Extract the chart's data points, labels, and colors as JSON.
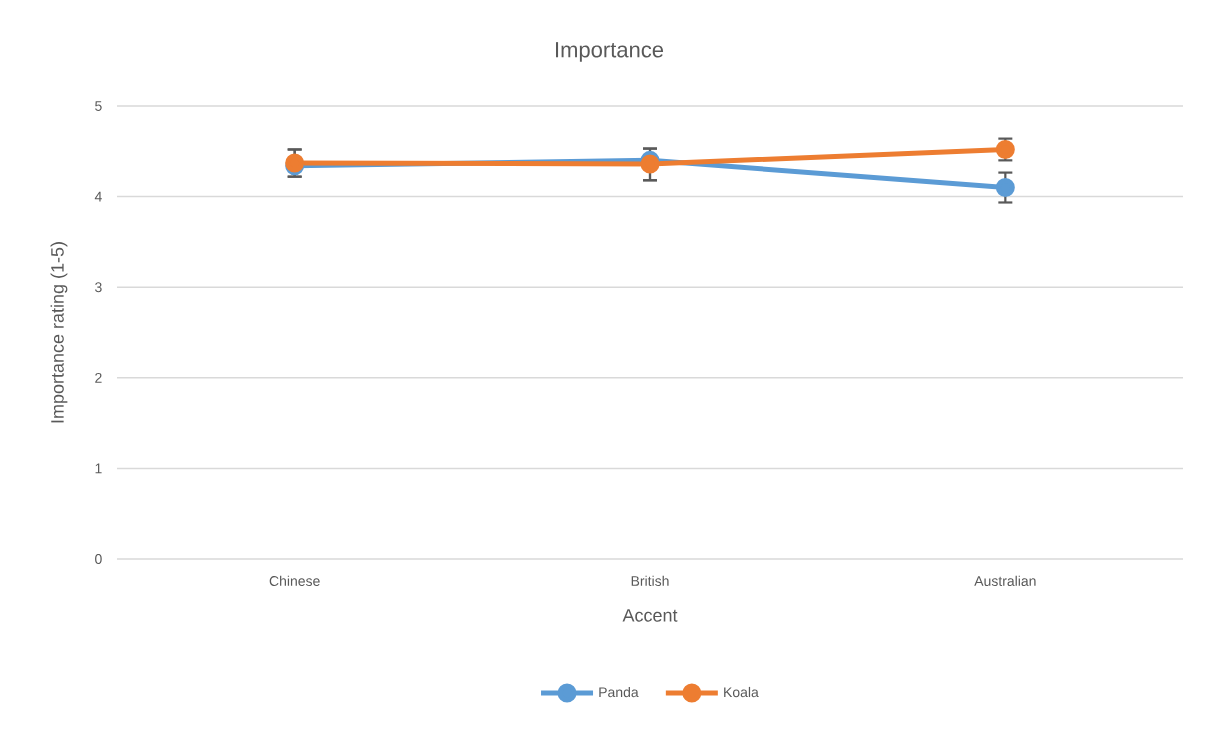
{
  "chart_data": {
    "type": "line",
    "title": "Importance",
    "xlabel": "Accent",
    "ylabel": "Importance rating (1-5)",
    "categories": [
      "Chinese",
      "British",
      "Australian"
    ],
    "series": [
      {
        "name": "Panda",
        "color": "#5b9bd5",
        "values": [
          4.34,
          4.4,
          4.1
        ],
        "errors": [
          [
            4.22,
            4.52
          ],
          [
            4.18,
            4.53
          ],
          0.165
        ]
      },
      {
        "name": "Koala",
        "color": "#ed7d31",
        "values": [
          4.37,
          4.36,
          4.52
        ],
        "errors": [
          [
            4.22,
            4.52
          ],
          [
            4.18,
            4.53
          ],
          0.12
        ]
      }
    ],
    "ylim": [
      0,
      5
    ],
    "yticks": [
      0,
      1,
      2,
      3,
      4,
      5
    ],
    "grid": "y",
    "legend": "bottom",
    "marker": "circle",
    "line_style": "solid"
  }
}
